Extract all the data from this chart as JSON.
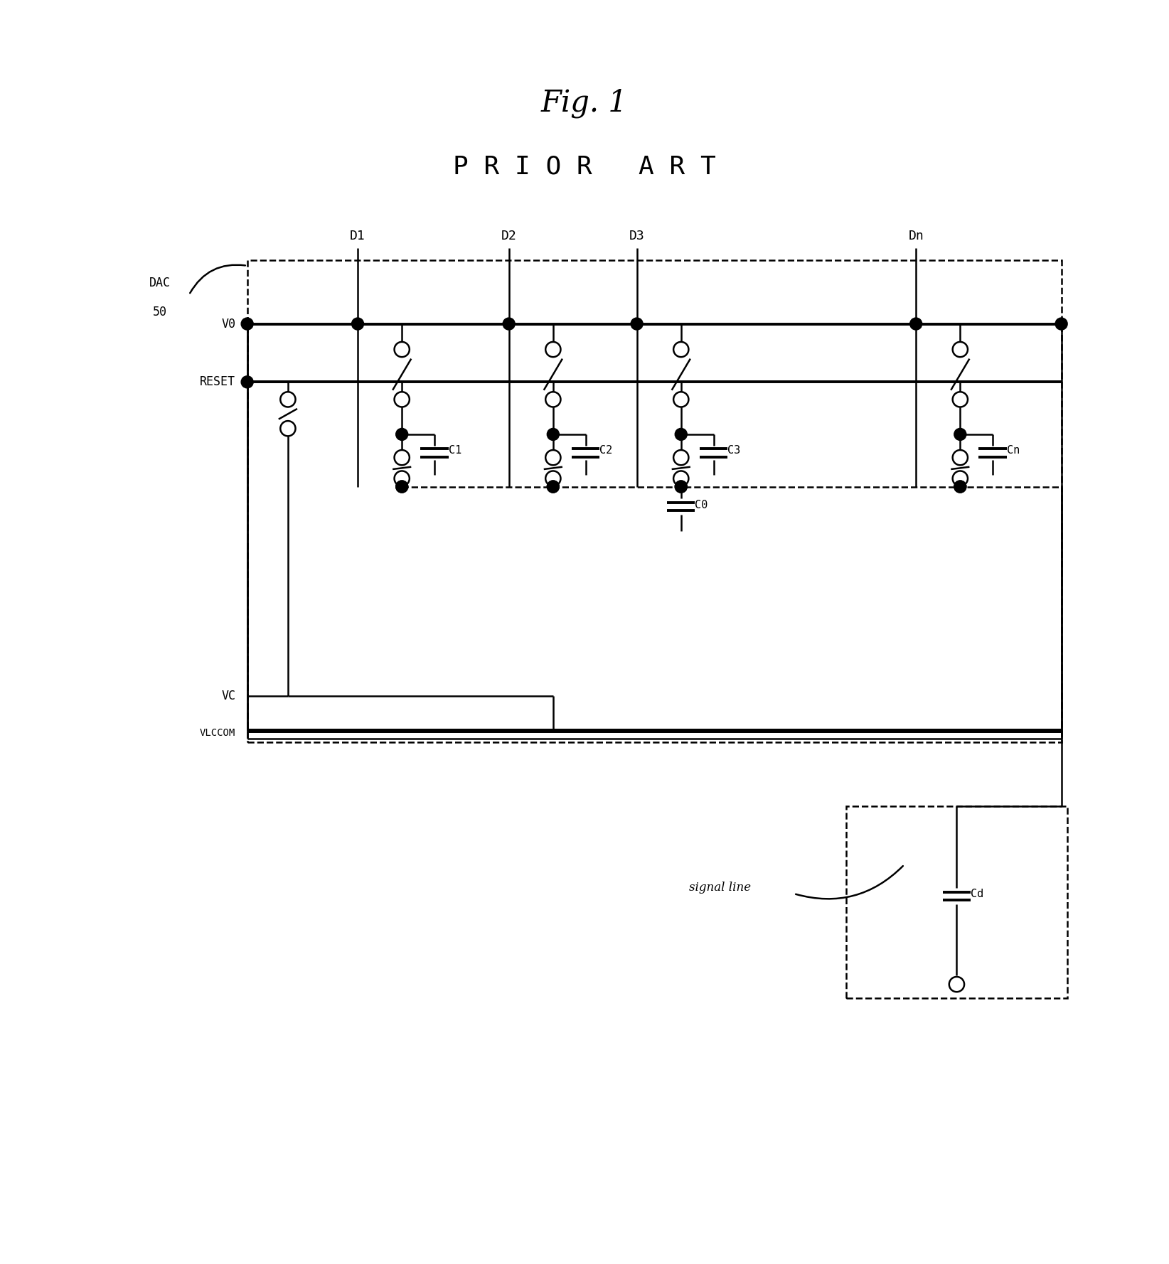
{
  "title1": "Fig. 1",
  "title2": "P R I O R   A R T",
  "bg_color": "#ffffff",
  "line_color": "#000000",
  "fig_width": 16.44,
  "fig_height": 17.78,
  "dpi": 100,
  "col_labels": [
    "D1",
    "D2",
    "D3",
    "Dn"
  ],
  "cap_labels": [
    "C1",
    "C2",
    "C3",
    "Cn"
  ],
  "c0_label": "C0",
  "cd_label": "Cd",
  "dac_label1": "DAC",
  "dac_label2": "50",
  "v0_label": "V0",
  "reset_label": "RESET",
  "vc_label": "VC",
  "vlccom_label": "VLCCOM",
  "signal_label": "signal line"
}
